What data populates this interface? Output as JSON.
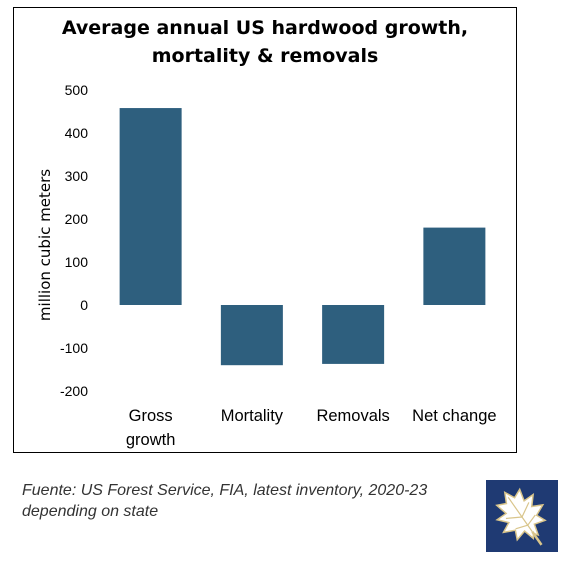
{
  "chart_data": {
    "type": "bar",
    "title_lines": [
      "Average annual US hardwood growth,",
      "mortality & removals"
    ],
    "ylabel": "million cubic meters",
    "xlabel": "",
    "categories": [
      [
        "Gross",
        "growth"
      ],
      [
        "Mortality"
      ],
      [
        "Removals"
      ],
      [
        "Net change"
      ]
    ],
    "values": [
      458,
      -140,
      -137,
      180
    ],
    "ylim": [
      -200,
      500
    ],
    "yticks": [
      500,
      400,
      300,
      200,
      100,
      0,
      -100,
      -200
    ],
    "grid": false,
    "legend": "none",
    "bar_color": "#2e5f7e"
  },
  "source_note": [
    "Fuente: US Forest Service, FIA, latest inventory, 2020-23",
    "depending on state"
  ],
  "logo": {
    "icon": "oak-leaf-icon",
    "background": "#1f3a73",
    "leaf_color": "#d9c58b"
  }
}
